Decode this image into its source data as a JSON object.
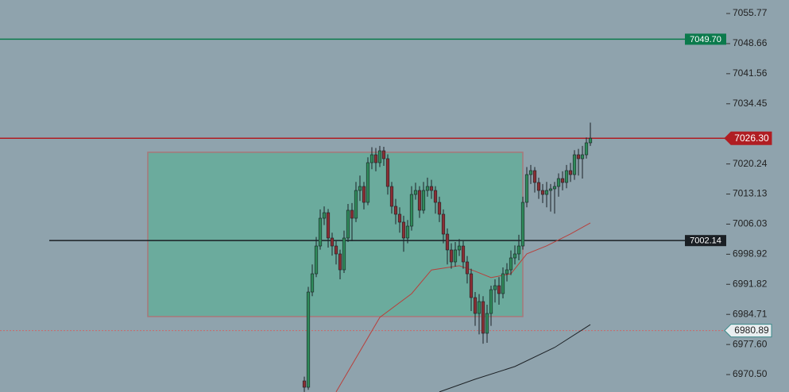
{
  "chart_data": {
    "type": "candlestick",
    "xlim": [
      -76.6,
      105.8
    ],
    "ylim": [
      6966.38,
      7058.96
    ],
    "yticks": [
      7055.77,
      7048.66,
      7041.56,
      7034.45,
      7020.24,
      7013.13,
      7006.03,
      6998.92,
      6991.82,
      6984.71,
      {
        "value": 6977.6,
        "label": "6977.60"
      },
      {
        "value": 6970.5,
        "label": "6970.50"
      }
    ],
    "up_color": "#2f8a5a",
    "down_color": "#8a2f34",
    "x": [
      0,
      1,
      2,
      3,
      4,
      5,
      6,
      7,
      8,
      9,
      10,
      11,
      12,
      13,
      14,
      15,
      16,
      17,
      18,
      19,
      20,
      21,
      22,
      23,
      24,
      25,
      26,
      27,
      28,
      29,
      30,
      31,
      32,
      33,
      34,
      35,
      36,
      37,
      38,
      39,
      40,
      41,
      42,
      43,
      44,
      45,
      46,
      47,
      48,
      49,
      50,
      51,
      52,
      53,
      54,
      55,
      56,
      57,
      58,
      59,
      60,
      61,
      62,
      63,
      64,
      65,
      66,
      67,
      68,
      69,
      70,
      71,
      72
    ],
    "open": [
      6969.0,
      6967.5,
      6989.99,
      6994.3,
      7000.86,
      7007.42,
      7008.73,
      7002.74,
      7000.86,
      6998.99,
      6995.24,
      7002.74,
      7009.3,
      7007.42,
      7013.98,
      7014.92,
      7011.17,
      7020.54,
      7022.41,
      7020.54,
      7023.35,
      7021.48,
      7014.92,
      7010.23,
      7008.36,
      7006.49,
      7002.74,
      7005.55,
      7013.04,
      7013.98,
      7009.3,
      7013.98,
      7014.92,
      7013.98,
      7011.17,
      7008.36,
      7003.67,
      6999.93,
      6997.11,
      6999.93,
      7000.86,
      6997.11,
      6994.3,
      6988.68,
      6984.93,
      6987.74,
      6980.25,
      6984.93,
      6990.55,
      6991.49,
      6989.62,
      6994.3,
      6995.24,
      6998.05,
      6998.99,
      7000.86,
      7011.17,
      7017.73,
      7018.67,
      7015.86,
      7013.98,
      7013.04,
      7013.98,
      7014.36,
      7014.92,
      7016.79,
      7015.86,
      7018.67,
      7017.73,
      7022.41,
      7021.48,
      7022.41,
      7025.23
    ],
    "high": [
      6970.0,
      6991.2,
      6996.5,
      7003.0,
      7009.5,
      7010.2,
      7009.6,
      7004.0,
      7002.0,
      7000.0,
      7004.5,
      7010.8,
      7011.0,
      7016.0,
      7017.5,
      7016.0,
      7021.8,
      7024.2,
      7024.0,
      7024.5,
      7024.3,
      7022.5,
      7016.0,
      7012.0,
      7010.0,
      7008.0,
      7007.0,
      7015.0,
      7015.8,
      7015.0,
      7016.0,
      7017.0,
      7016.5,
      7015.0,
      7012.5,
      7009.5,
      7005.0,
      7001.5,
      7001.8,
      7002.5,
      7002.0,
      6998.5,
      6995.5,
      6990.0,
      6989.5,
      6989.0,
      6987.0,
      6991.5,
      6993.0,
      6993.5,
      6995.8,
      6996.8,
      6999.8,
      7001.0,
      7003.5,
      7012.5,
      7019.5,
      7020.0,
      7019.5,
      7017.0,
      7015.5,
      7016.0,
      7015.5,
      7016.0,
      7018.0,
      7018.5,
      7020.0,
      7020.5,
      7023.5,
      7023.8,
      7024.5,
      7026.5,
      7030.0
    ],
    "low": [
      6966.4,
      6966.9,
      6989.0,
      6993.5,
      7000.0,
      7005.8,
      7000.5,
      6998.6,
      6996.5,
      6993.0,
      6994.5,
      7001.8,
      7002.0,
      7006.5,
      7011.5,
      7009.5,
      7010.5,
      7019.0,
      7018.5,
      7019.5,
      7019.8,
      7013.0,
      7008.5,
      7006.0,
      7004.0,
      6999.5,
      7001.5,
      7004.5,
      7011.8,
      7007.5,
      7008.5,
      7012.5,
      7012.0,
      7008.5,
      7006.5,
      7001.5,
      6996.5,
      6995.5,
      6996.0,
      6998.5,
      6995.5,
      6992.0,
      6985.5,
      6982.0,
      6980.0,
      6977.8,
      6978.0,
      6982.0,
      6987.5,
      6987.0,
      6988.5,
      6992.5,
      6994.0,
      6996.5,
      6997.5,
      7000.0,
      7010.0,
      7015.5,
      7013.5,
      7012.0,
      7011.0,
      7010.0,
      7009.0,
      7008.5,
      7012.5,
      7014.0,
      7014.5,
      7016.0,
      7016.5,
      7017.5,
      7016.8,
      7021.5,
      7024.5
    ],
    "close": [
      6967.5,
      6989.99,
      6994.3,
      7000.86,
      7007.42,
      7008.73,
      7002.74,
      7000.86,
      6998.99,
      6995.24,
      7002.74,
      7009.3,
      7007.42,
      7013.98,
      7014.92,
      7011.17,
      7020.54,
      7022.41,
      7020.54,
      7023.35,
      7021.48,
      7014.92,
      7010.23,
      7008.36,
      7006.49,
      7002.74,
      7005.55,
      7013.04,
      7013.98,
      7009.3,
      7013.98,
      7014.92,
      7013.98,
      7011.17,
      7008.36,
      7003.67,
      6999.93,
      6997.11,
      6999.93,
      7000.86,
      6997.11,
      6994.3,
      6988.68,
      6984.93,
      6987.74,
      6980.25,
      6984.93,
      6990.55,
      6991.49,
      6989.62,
      6994.3,
      6995.24,
      6998.05,
      6998.99,
      7000.86,
      7011.17,
      7017.73,
      7018.67,
      7015.86,
      7013.98,
      7013.04,
      7013.98,
      7014.36,
      7014.92,
      7016.79,
      7015.86,
      7018.67,
      7017.73,
      7022.41,
      7021.48,
      7022.41,
      7025.23,
      7026.3
    ],
    "moving_averages": [
      {
        "color": "#b8403c",
        "x": [
          8,
          19,
          27,
          32,
          39,
          43,
          47,
          52,
          56,
          61,
          67,
          72
        ],
        "values": [
          6966.4,
          6984.0,
          6989.6,
          6995.2,
          6996.2,
          6994.9,
          6993.4,
          6994.3,
          6999.0,
          7000.9,
          7003.7,
          7006.3
        ]
      },
      {
        "color": "#1d2226",
        "x": [
          34,
          43,
          53,
          63,
          72
        ],
        "values": [
          6966.4,
          6969.4,
          6972.4,
          6976.9,
          6982.3
        ]
      }
    ],
    "zone": {
      "x": [
        -39.4,
        55
      ],
      "y": [
        6984.2,
        7023.0
      ],
      "color": "#5fae98",
      "border": "#a9777a"
    },
    "levels": [
      {
        "value": 7049.7,
        "label": "7049.70",
        "color": "#0b7a4c",
        "style": "solid",
        "x_start": -76.6,
        "label_place": "inside"
      },
      {
        "value": 7002.14,
        "label": "7002.14",
        "color": "#1a1f24",
        "style": "solid",
        "x_start": -64.2,
        "label_place": "inside"
      },
      {
        "value": 7026.3,
        "label": "7026.30",
        "color": "#b01d22",
        "style": "solid",
        "x_start": -76.6,
        "label_place": "axis"
      },
      {
        "value": 6980.89,
        "label": "6980.89",
        "color": "#c96a6a",
        "style": "dotted",
        "x_start": -76.6,
        "label_place": "axis-light"
      }
    ]
  }
}
